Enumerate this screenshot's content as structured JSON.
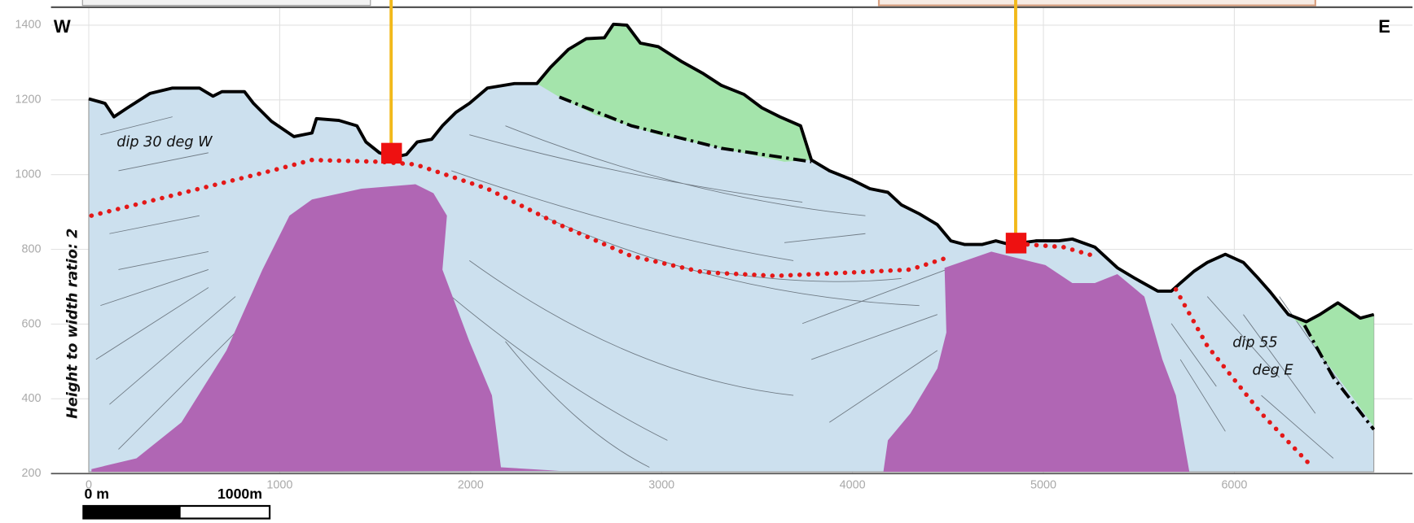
{
  "section": {
    "west": "W",
    "east": "E",
    "left_note": "dip 30 deg W",
    "ratio_note": "Height to width ratio: 2",
    "right_note_1": "dip 55",
    "right_note_2": "deg E"
  },
  "axes": {
    "xticks": [
      0,
      1000,
      2000,
      3000,
      4000,
      5000,
      6000
    ],
    "yticks": [
      200,
      400,
      600,
      800,
      1000,
      1200,
      1400
    ]
  },
  "scale_bar": {
    "start": "0 m",
    "end": "1000m"
  }
}
